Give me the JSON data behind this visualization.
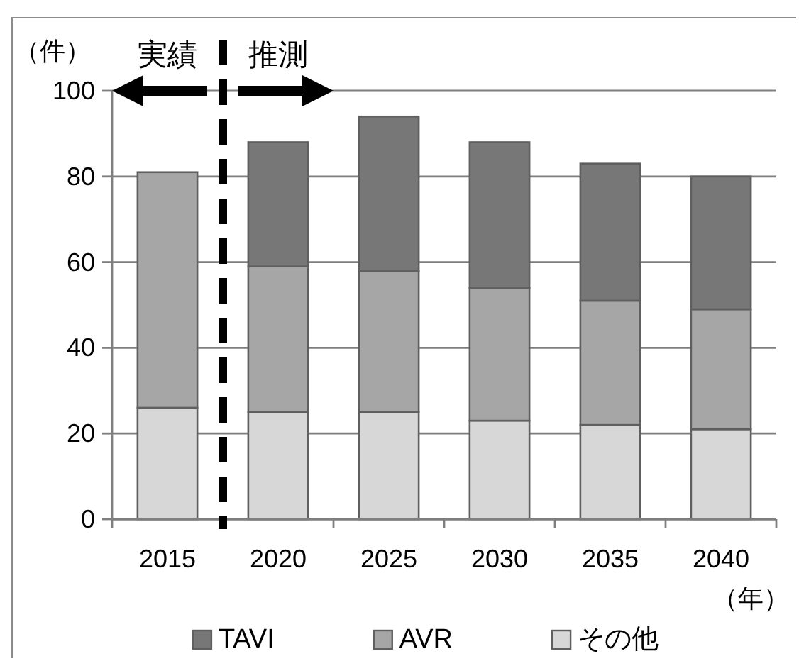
{
  "chart_data": {
    "type": "bar",
    "stacked": true,
    "x": [
      2015,
      2020,
      2025,
      2030,
      2035,
      2040
    ],
    "xlim": [
      2012.5,
      2042.5
    ],
    "xticks": [
      {
        "value": 2012.5,
        "label": null
      },
      2015,
      {
        "value": 2017.5,
        "label": null
      },
      2020,
      {
        "value": 2022.5,
        "label": null
      },
      2025,
      {
        "value": 2027.5,
        "label": null
      },
      2030,
      {
        "value": 2032.5,
        "label": null
      },
      2035,
      {
        "value": 2037.5,
        "label": null
      },
      2040,
      {
        "value": 2042.5,
        "label": null
      }
    ],
    "ylim": [
      0,
      100
    ],
    "yticks": [
      0,
      20,
      40,
      60,
      80,
      100
    ],
    "ylabel": "（件）",
    "xlabel": "（年）",
    "grid": "y",
    "legend": "bottom",
    "series": [
      {
        "name": "その他",
        "color": "#d7d7d7",
        "values": [
          26,
          25,
          25,
          23,
          22,
          21
        ]
      },
      {
        "name": "AVR",
        "color": "#a6a6a6",
        "values": [
          55,
          34,
          33,
          31,
          29,
          28
        ]
      },
      {
        "name": "TAVI",
        "color": "#777777",
        "values": [
          null,
          29,
          36,
          34,
          32,
          31
        ]
      }
    ],
    "ref_lines": [
      {
        "axis": "x",
        "value": 2017.5,
        "color": "#000000",
        "line_style": "dashed"
      }
    ],
    "annotations": [
      "実績",
      "推測"
    ]
  }
}
